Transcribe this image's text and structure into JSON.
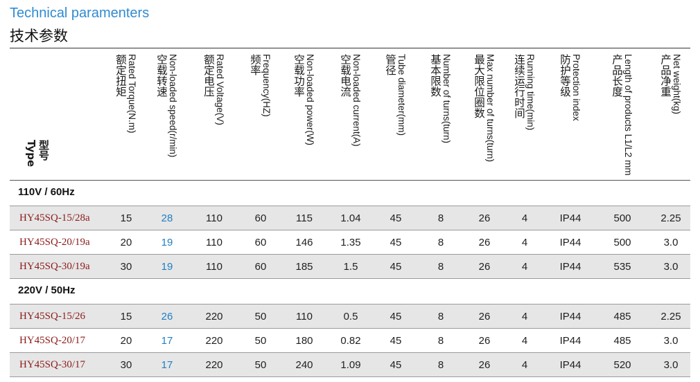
{
  "title": {
    "en": "Technical paramenters",
    "cn": "技术参数"
  },
  "header": {
    "type": {
      "en": "Type",
      "cn": "型号"
    },
    "columns": [
      {
        "en": "Rated Torque(N.m)",
        "cn": "额定扭矩"
      },
      {
        "en": "Non-loaded speed(r/min)",
        "cn": "空载转速"
      },
      {
        "en": "Rated Voltage(V)",
        "cn": "额定电压"
      },
      {
        "en": "Frequency(HZ)",
        "cn": "频率"
      },
      {
        "en": "Non-loaded power(W)",
        "cn": "空载功率"
      },
      {
        "en": "Non-loaded current(A)",
        "cn": "空载电流"
      },
      {
        "en": "Tube diameter(mm)",
        "cn": "管径"
      },
      {
        "en": "Number of turns(turn)",
        "cn": "基本限数"
      },
      {
        "en": "Max number of turns(turn)",
        "cn": "最大限位圈数"
      },
      {
        "en": "Running time(min)",
        "cn": "连续运行时间"
      },
      {
        "en": "Protection index",
        "cn": "防护等级"
      },
      {
        "en": "Length of products L1/L2 mm",
        "cn": "产品长度"
      },
      {
        "en": "Net weight(kg)",
        "cn": "产品净重"
      }
    ]
  },
  "sections": [
    {
      "label": "110V / 60Hz",
      "rows": [
        {
          "type": "HY45SQ-15/28a",
          "torque": "15",
          "speed": "28",
          "voltage": "110",
          "freq": "60",
          "power": "115",
          "current": "1.04",
          "tube": "45",
          "turns": "8",
          "max_turns": "26",
          "run_time": "4",
          "protection": "IP44",
          "length": "500",
          "weight": "2.25"
        },
        {
          "type": "HY45SQ-20/19a",
          "torque": "20",
          "speed": "19",
          "voltage": "110",
          "freq": "60",
          "power": "146",
          "current": "1.35",
          "tube": "45",
          "turns": "8",
          "max_turns": "26",
          "run_time": "4",
          "protection": "IP44",
          "length": "500",
          "weight": "3.0"
        },
        {
          "type": "HY45SQ-30/19a",
          "torque": "30",
          "speed": "19",
          "voltage": "110",
          "freq": "60",
          "power": "185",
          "current": "1.5",
          "tube": "45",
          "turns": "8",
          "max_turns": "26",
          "run_time": "4",
          "protection": "IP44",
          "length": "535",
          "weight": "3.0"
        }
      ]
    },
    {
      "label": "220V / 50Hz",
      "rows": [
        {
          "type": "HY45SQ-15/26",
          "torque": "15",
          "speed": "26",
          "voltage": "220",
          "freq": "50",
          "power": "110",
          "current": "0.5",
          "tube": "45",
          "turns": "8",
          "max_turns": "26",
          "run_time": "4",
          "protection": "IP44",
          "length": "485",
          "weight": "2.25"
        },
        {
          "type": "HY45SQ-20/17",
          "torque": "20",
          "speed": "17",
          "voltage": "220",
          "freq": "50",
          "power": "180",
          "current": "0.82",
          "tube": "45",
          "turns": "8",
          "max_turns": "26",
          "run_time": "4",
          "protection": "IP44",
          "length": "485",
          "weight": "3.0"
        },
        {
          "type": "HY45SQ-30/17",
          "torque": "30",
          "speed": "17",
          "voltage": "220",
          "freq": "50",
          "power": "240",
          "current": "1.09",
          "tube": "45",
          "turns": "8",
          "max_turns": "26",
          "run_time": "4",
          "protection": "IP44",
          "length": "520",
          "weight": "3.0"
        }
      ]
    }
  ],
  "colors": {
    "title_en": "#2f8bd1",
    "model_text": "#8b1a1a",
    "speed_text": "#1f7fc4",
    "row_shade": "#e6e6e6"
  }
}
